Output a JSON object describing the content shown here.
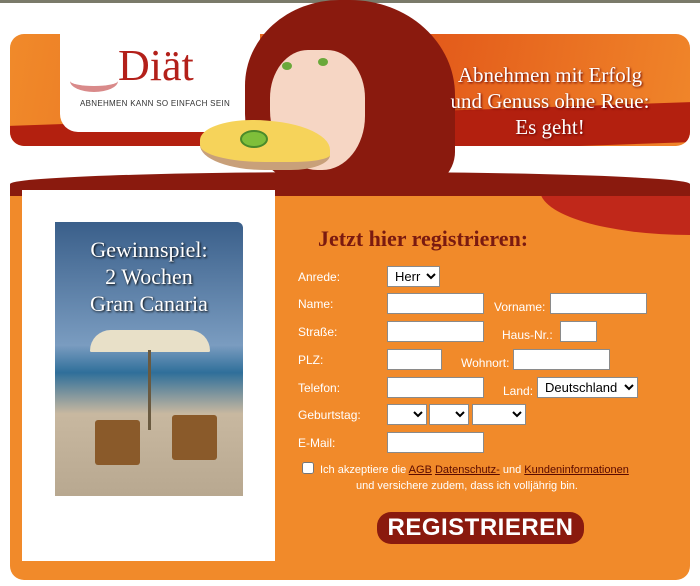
{
  "header": {
    "logo": "Diät",
    "tagline": "ABNEHMEN KANN SO EINFACH SEIN",
    "slogan_lines": [
      "Abnehmen mit Erfolg",
      "und Genuss ohne Reue:",
      "Es geht!"
    ]
  },
  "promo": {
    "title_lines": [
      "Gewinnspiel:",
      "2 Wochen",
      "Gran Canaria"
    ]
  },
  "form": {
    "heading": "Jetzt hier registrieren:",
    "anrede_label": "Anrede:",
    "anrede_value": "Herr",
    "name_label": "Name:",
    "vorname_label": "Vorname:",
    "strasse_label": "Straße:",
    "hausnr_label": "Haus-Nr.:",
    "plz_label": "PLZ:",
    "wohnort_label": "Wohnort:",
    "telefon_label": "Telefon:",
    "land_label": "Land:",
    "land_value": "Deutschland",
    "geburtstag_label": "Geburtstag:",
    "email_label": "E-Mail:",
    "terms_prefix": "Ich akzeptiere die ",
    "agb": "AGB",
    "datenschutz": "Datenschutz-",
    "und": " und ",
    "kundeninfo": "Kundeninformationen",
    "terms_line2": "und versichere zudem, dass ich volljährig bin.",
    "submit": "REGISTRIEREN"
  },
  "colors": {
    "orange": "#f18a2a",
    "dark_red": "#8a1a0e"
  }
}
